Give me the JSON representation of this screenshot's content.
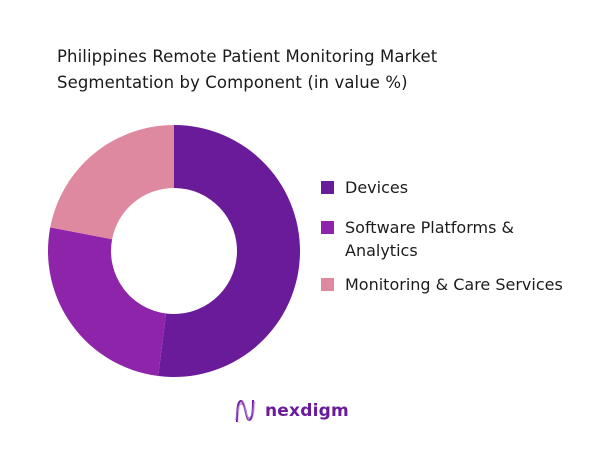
{
  "title": {
    "line1": "Philippines Remote Patient Monitoring Market",
    "line2": "Segmentation by Component (in value %)"
  },
  "legend": {
    "items": [
      {
        "label": "Devices",
        "color": "#6a1b9a"
      },
      {
        "label": "Software Platforms &",
        "label2": "Analytics",
        "color": "#8e24aa"
      },
      {
        "label": "Monitoring & Care Services",
        "color": "#df89a0"
      }
    ]
  },
  "logo": {
    "text": "nexdigm",
    "color": "#6a1b9a"
  },
  "chart_data": {
    "type": "pie",
    "variant": "donut",
    "title": "Philippines Remote Patient Monitoring Market Segmentation by Component (in value %)",
    "categories": [
      "Devices",
      "Software Platforms & Analytics",
      "Monitoring & Care Services"
    ],
    "values": [
      52,
      26,
      22
    ],
    "colors": [
      "#6a1b9a",
      "#8e24aa",
      "#df89a0"
    ],
    "unit": "%",
    "start_angle": "12 o'clock, clockwise",
    "legend_position": "right",
    "data_labels": false
  }
}
